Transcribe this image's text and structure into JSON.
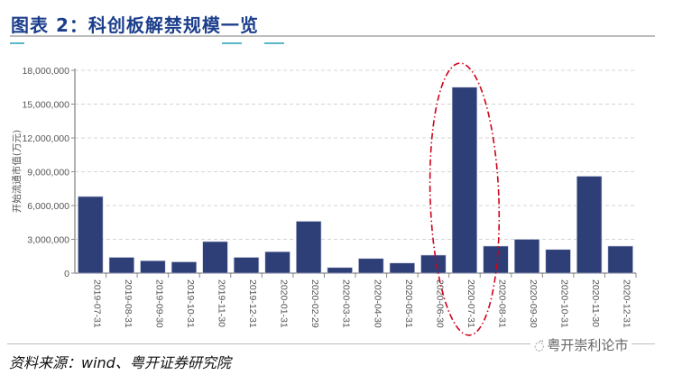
{
  "header": {
    "title": "图表 2：科创板解禁规模一览"
  },
  "footer": {
    "source": "资料来源：wind、粤开证券研究院",
    "watermark": "粤开崇利论市",
    "watermark_icon": "wechat-icon"
  },
  "colors": {
    "bar": "#2e3f78",
    "title": "#1c3f8c",
    "highlight": "#d0021b"
  },
  "chart_data": {
    "type": "bar",
    "title": "",
    "xlabel": "",
    "ylabel": "开始流通市值(万元)",
    "ylim": [
      0,
      18000000
    ],
    "yticks": [
      0,
      3000000,
      6000000,
      9000000,
      12000000,
      15000000,
      18000000
    ],
    "ytick_labels": [
      "0",
      "3,000,000",
      "6,000,000",
      "9,000,000",
      "12,000,000",
      "15,000,000",
      "18,000,000"
    ],
    "grid": true,
    "categories": [
      "2019-07-31",
      "2019-08-31",
      "2019-09-30",
      "2019-10-31",
      "2019-11-30",
      "2019-12-31",
      "2020-01-31",
      "2020-02-29",
      "2020-03-31",
      "2020-04-30",
      "2020-05-31",
      "2020-06-30",
      "2020-07-31",
      "2020-08-31",
      "2020-09-30",
      "2020-10-31",
      "2020-11-30",
      "2020-12-31"
    ],
    "values": [
      6800000,
      1400000,
      1100000,
      1000000,
      2800000,
      1400000,
      1900000,
      4600000,
      500000,
      1300000,
      900000,
      1600000,
      16500000,
      2400000,
      3000000,
      2100000,
      8600000,
      2400000
    ],
    "annotations": [
      {
        "type": "dash-dot ellipse",
        "target": "2020-07-31"
      }
    ]
  }
}
